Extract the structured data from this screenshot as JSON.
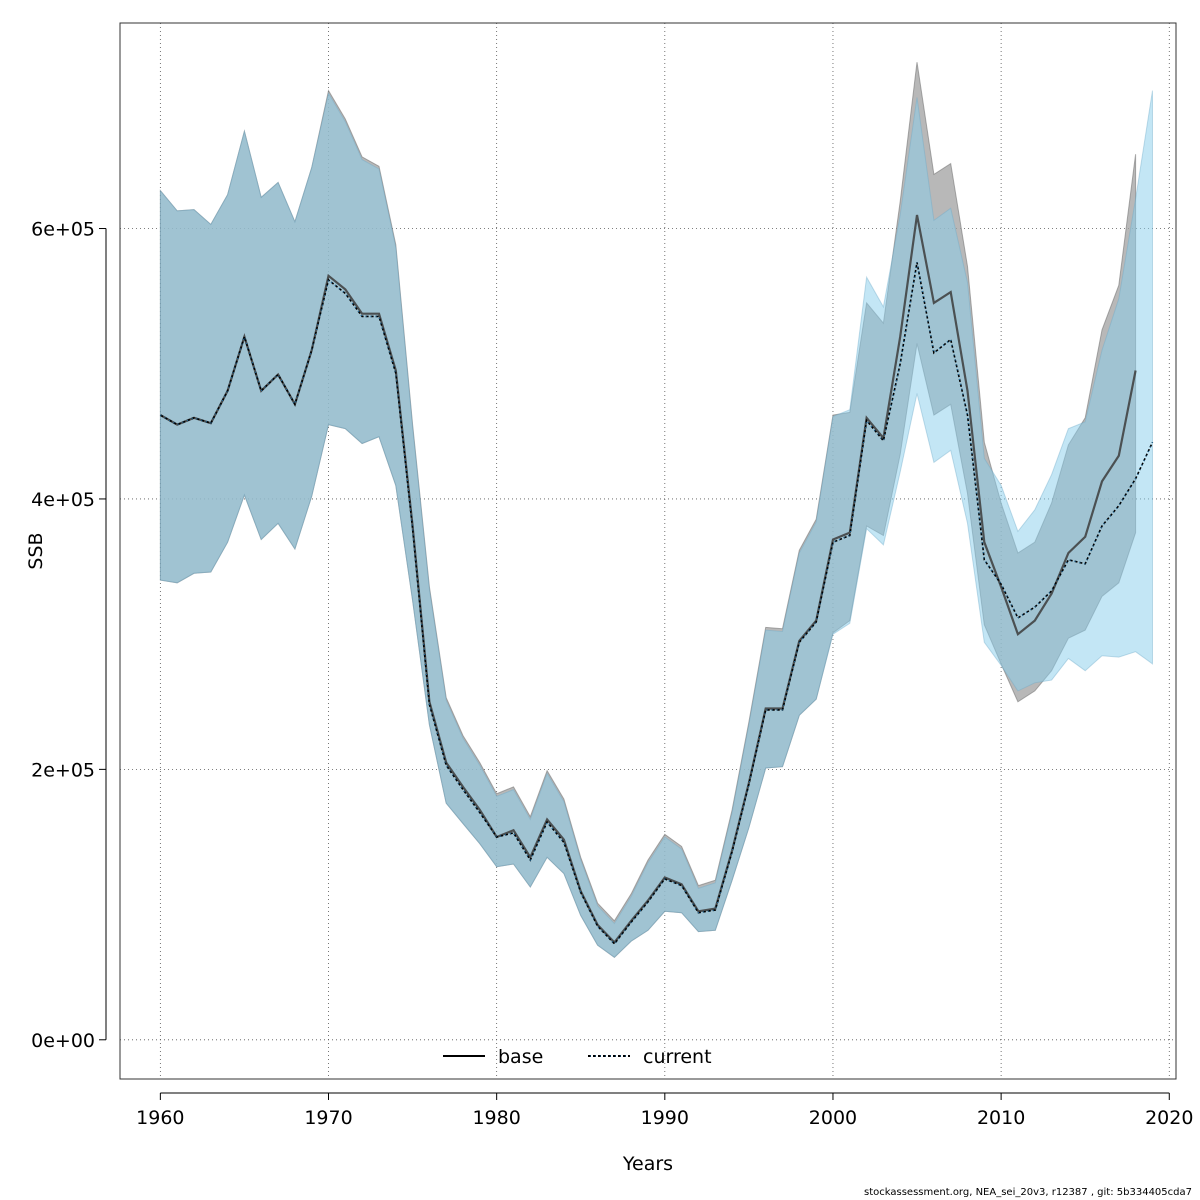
{
  "chart_data": {
    "type": "line",
    "xlabel": "Years",
    "ylabel": "SSB",
    "xlim": [
      1957.6,
      2020.4
    ],
    "ylim": [
      -29000,
      752000
    ],
    "x_ticks": [
      1960,
      1970,
      1980,
      1990,
      2000,
      2010,
      2020
    ],
    "x_tick_labels": [
      "1960",
      "1970",
      "1980",
      "1990",
      "2000",
      "2010",
      "2020"
    ],
    "y_ticks": [
      0,
      200000,
      400000,
      600000
    ],
    "y_tick_labels": [
      "0e+00",
      "2e+05",
      "4e+05",
      "6e+05"
    ],
    "grid": true,
    "legend_position": "bottom",
    "colors": {
      "base_band": "#bebebe",
      "current_band": "#87ceeb",
      "base_line": "#000000",
      "current_line": "#000000",
      "current_dash_accent": "#1f78b4"
    },
    "series": [
      {
        "name": "base",
        "x": [
          1960,
          1961,
          1962,
          1963,
          1964,
          1965,
          1966,
          1967,
          1968,
          1969,
          1970,
          1971,
          1972,
          1973,
          1974,
          1975,
          1976,
          1977,
          1978,
          1979,
          1980,
          1981,
          1982,
          1983,
          1984,
          1985,
          1986,
          1987,
          1988,
          1989,
          1990,
          1991,
          1992,
          1993,
          1994,
          1995,
          1996,
          1997,
          1998,
          1999,
          2000,
          2001,
          2002,
          2003,
          2004,
          2005,
          2006,
          2007,
          2008,
          2009,
          2010,
          2011,
          2012,
          2013,
          2014,
          2015,
          2016,
          2017,
          2018
        ],
        "values": [
          462000,
          455000,
          460000,
          456000,
          480000,
          520000,
          480000,
          492000,
          470000,
          510000,
          565000,
          555000,
          537000,
          537000,
          495000,
          380000,
          250000,
          205000,
          187000,
          170000,
          150000,
          155000,
          135000,
          163000,
          148000,
          110000,
          85000,
          72000,
          88000,
          103000,
          120000,
          115000,
          95000,
          97000,
          140000,
          190000,
          245000,
          245000,
          295000,
          310000,
          370000,
          375000,
          460000,
          445000,
          520000,
          610000,
          545000,
          553000,
          480000,
          368000,
          335000,
          300000,
          310000,
          330000,
          360000,
          372000,
          413000,
          432000,
          495000
        ],
        "lower": [
          340000,
          338000,
          345000,
          346000,
          368000,
          403000,
          370000,
          382000,
          363000,
          402000,
          455000,
          452000,
          441000,
          446000,
          410000,
          325000,
          233000,
          175000,
          160000,
          145000,
          128000,
          130000,
          113000,
          135000,
          123000,
          92000,
          70000,
          61000,
          73000,
          81000,
          95000,
          94000,
          80000,
          81000,
          118000,
          157000,
          201000,
          202000,
          240000,
          252000,
          301000,
          310000,
          380000,
          373000,
          433000,
          515000,
          462000,
          470000,
          404000,
          307000,
          278000,
          250000,
          258000,
          273000,
          297000,
          303000,
          328000,
          338000,
          375000
        ],
        "upper": [
          628000,
          613000,
          614000,
          603000,
          625000,
          672000,
          623000,
          634000,
          605000,
          645000,
          702000,
          681000,
          653000,
          646000,
          588000,
          455000,
          335000,
          253000,
          225000,
          205000,
          182000,
          187000,
          165000,
          199000,
          178000,
          135000,
          101000,
          88000,
          108000,
          133000,
          152000,
          143000,
          114000,
          118000,
          170000,
          235000,
          305000,
          304000,
          362000,
          385000,
          462000,
          464000,
          545000,
          530000,
          620000,
          723000,
          640000,
          648000,
          572000,
          442000,
          397000,
          360000,
          368000,
          397000,
          440000,
          460000,
          525000,
          558000,
          655000
        ]
      },
      {
        "name": "current",
        "x": [
          1960,
          1961,
          1962,
          1963,
          1964,
          1965,
          1966,
          1967,
          1968,
          1969,
          1970,
          1971,
          1972,
          1973,
          1974,
          1975,
          1976,
          1977,
          1978,
          1979,
          1980,
          1981,
          1982,
          1983,
          1984,
          1985,
          1986,
          1987,
          1988,
          1989,
          1990,
          1991,
          1992,
          1993,
          1994,
          1995,
          1996,
          1997,
          1998,
          1999,
          2000,
          2001,
          2002,
          2003,
          2004,
          2005,
          2006,
          2007,
          2008,
          2009,
          2010,
          2011,
          2012,
          2013,
          2014,
          2015,
          2016,
          2017,
          2018,
          2019
        ],
        "values": [
          462000,
          455000,
          460000,
          456000,
          480000,
          520000,
          480000,
          492000,
          470000,
          510000,
          562000,
          552000,
          535000,
          535000,
          493000,
          378000,
          248000,
          203000,
          185000,
          168000,
          150000,
          153000,
          133000,
          161000,
          146000,
          109000,
          84000,
          71000,
          87000,
          102000,
          119000,
          114000,
          94000,
          96000,
          139000,
          189000,
          244000,
          244000,
          294000,
          309000,
          368000,
          373000,
          458000,
          443000,
          500000,
          575000,
          508000,
          518000,
          462000,
          355000,
          337000,
          312000,
          320000,
          332000,
          355000,
          352000,
          380000,
          395000,
          415000,
          442000
        ],
        "lower": [
          340000,
          338000,
          345000,
          346000,
          368000,
          403000,
          370000,
          382000,
          363000,
          402000,
          455000,
          452000,
          441000,
          446000,
          410000,
          325000,
          233000,
          175000,
          160000,
          145000,
          128000,
          130000,
          113000,
          135000,
          123000,
          92000,
          70000,
          61000,
          73000,
          81000,
          95000,
          94000,
          80000,
          81000,
          118000,
          157000,
          201000,
          202000,
          240000,
          252000,
          300000,
          308000,
          378000,
          366000,
          420000,
          478000,
          427000,
          436000,
          382000,
          294000,
          277000,
          258000,
          264000,
          266000,
          282000,
          273000,
          284000,
          283000,
          287000,
          278000
        ],
        "upper": [
          628000,
          613000,
          614000,
          603000,
          625000,
          672000,
          623000,
          634000,
          605000,
          645000,
          700000,
          679000,
          651000,
          644000,
          586000,
          453000,
          333000,
          251000,
          223000,
          203000,
          180000,
          185000,
          163000,
          197000,
          176000,
          133000,
          99000,
          86000,
          106000,
          131000,
          150000,
          141000,
          112000,
          116000,
          168000,
          233000,
          303000,
          302000,
          360000,
          383000,
          461000,
          466000,
          564000,
          542000,
          610000,
          697000,
          606000,
          615000,
          560000,
          430000,
          410000,
          376000,
          392000,
          418000,
          452000,
          457000,
          510000,
          548000,
          622000,
          702000
        ]
      }
    ]
  },
  "footer": "stockassessment.org, NEA_sei_20v3, r12387 , git: 5b334405cda7"
}
